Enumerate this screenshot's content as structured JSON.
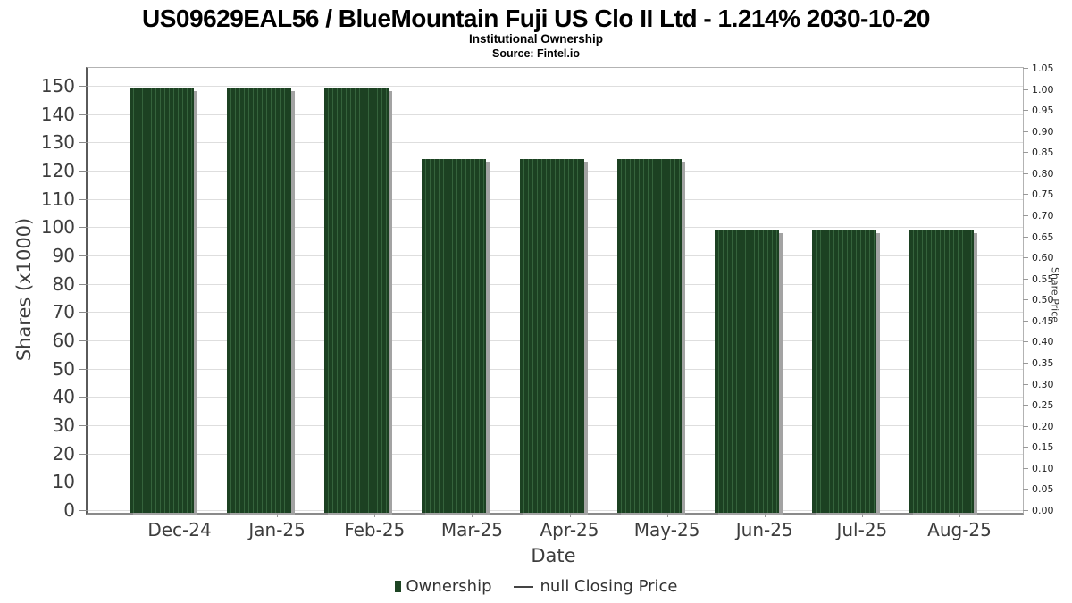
{
  "header": {
    "title": "US09629EAL56 / BlueMountain Fuji US Clo II Ltd - 1.214% 2030-10-20",
    "subtitle": "Institutional Ownership",
    "source": "Source: Fintel.io"
  },
  "legend": {
    "items": [
      {
        "label": "Ownership",
        "marker": "square",
        "color": "#1d4423"
      },
      {
        "label": "null Closing Price",
        "marker": "line",
        "color": "#444444"
      }
    ]
  },
  "chart_data": {
    "type": "bar",
    "title": "US09629EAL56 / BlueMountain Fuji US Clo II Ltd - 1.214% 2030-10-20",
    "subtitle": "Institutional Ownership",
    "source": "Source: Fintel.io",
    "categories": [
      "Dec-24",
      "Jan-25",
      "Feb-25",
      "Mar-25",
      "Apr-25",
      "May-25",
      "Jun-25",
      "Jul-25",
      "Aug-25"
    ],
    "series": [
      {
        "name": "Ownership",
        "type": "bar",
        "unit": "shares x1000",
        "values": [
          149,
          149,
          149,
          124,
          124,
          124,
          99,
          99,
          99
        ],
        "color": "#1d4423",
        "stripe_color": "#35633c",
        "shadow_color": "#a3a3a3"
      },
      {
        "name": "null Closing Price",
        "type": "line",
        "values": [],
        "color": "#444444"
      }
    ],
    "xlabel": "Date",
    "ylabel": "Shares (x1000)",
    "ylabel_right": "Share Price",
    "ylim_left": [
      0,
      156
    ],
    "yticks_left": [
      0,
      10,
      20,
      30,
      40,
      50,
      60,
      70,
      80,
      90,
      100,
      110,
      120,
      130,
      140,
      150
    ],
    "ylim_right": [
      0,
      1.05
    ],
    "yticks_right": [
      "0.00",
      "0.05",
      "0.10",
      "0.15",
      "0.20",
      "0.25",
      "0.30",
      "0.35",
      "0.40",
      "0.45",
      "0.50",
      "0.55",
      "0.60",
      "0.65",
      "0.70",
      "0.75",
      "0.80",
      "0.85",
      "0.90",
      "0.95",
      "1.00",
      "1.05"
    ],
    "grid": "horizontal",
    "gridline_color": "#dedede",
    "legend_position": "bottom"
  }
}
